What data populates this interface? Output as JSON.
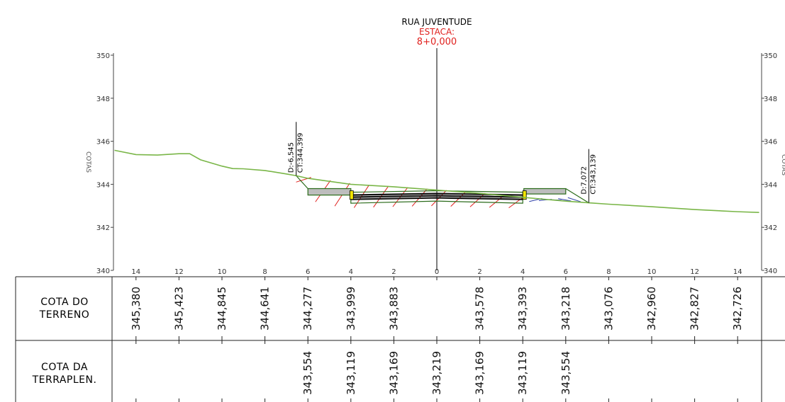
{
  "header": {
    "street": "RUA  JUVENTUDE",
    "station_label": "ESTACA:",
    "station_value": "8+0,000"
  },
  "axis": {
    "label": "COTAS",
    "elevations": [
      "350",
      "348",
      "346",
      "344",
      "342",
      "340"
    ],
    "offsets": [
      "14",
      "12",
      "10",
      "8",
      "6",
      "4",
      "2",
      "0",
      "2",
      "4",
      "6",
      "8",
      "10",
      "12",
      "14"
    ]
  },
  "annotations": {
    "left": {
      "d": "D:-6,545",
      "ct": "CT:344,399"
    },
    "right": {
      "d": "D:7,072",
      "ct": "CT:343,139"
    }
  },
  "table": {
    "row1_label_line1": "COTA  DO",
    "row1_label_line2": "TERRENO",
    "row2_label_line1": "COTA  DA",
    "row2_label_line2": "TERRAPLEN.",
    "terrain": [
      "345,380",
      "345,423",
      "344,845",
      "344,641",
      "344,277",
      "343,999",
      "343,883",
      "",
      "343,578",
      "343,393",
      "343,218",
      "343,076",
      "342,960",
      "342,827",
      "342,726"
    ],
    "earthwork": [
      "",
      "",
      "",
      "",
      "343,554",
      "343,119",
      "343,169",
      "343,219",
      "343,169",
      "343,119",
      "343,554",
      "",
      "",
      "",
      ""
    ]
  },
  "colors": {
    "terrain_line": "#7ab648",
    "cut_hatch": "#e0201d",
    "fill_hatch": "#2d3ea8",
    "station_text": "#e0201d"
  },
  "chart_data": {
    "type": "line",
    "xlabel": "",
    "ylabel": "COTAS",
    "ylim": [
      340,
      350
    ],
    "xlim": [
      -15,
      15
    ],
    "series": [
      {
        "x": [
          -15,
          -14,
          -13,
          -12,
          -11.5,
          -11,
          -10,
          -9.5,
          -9,
          -8,
          -7,
          -6.545,
          -6,
          -4,
          -2,
          0,
          2,
          4,
          6,
          7.072,
          8,
          10,
          12,
          14,
          15
        ],
        "values": [
          345.58,
          345.38,
          345.36,
          345.423,
          345.42,
          345.14,
          344.845,
          344.73,
          344.72,
          344.641,
          344.48,
          344.399,
          344.277,
          343.999,
          343.883,
          343.73,
          343.578,
          343.393,
          343.218,
          343.139,
          343.076,
          342.96,
          342.827,
          342.726,
          342.69
        ]
      },
      {
        "x": [
          -6,
          -4,
          -2,
          0,
          2,
          4,
          6
        ],
        "values": [
          343.554,
          343.119,
          343.169,
          343.219,
          343.169,
          343.119,
          343.554
        ]
      }
    ]
  }
}
